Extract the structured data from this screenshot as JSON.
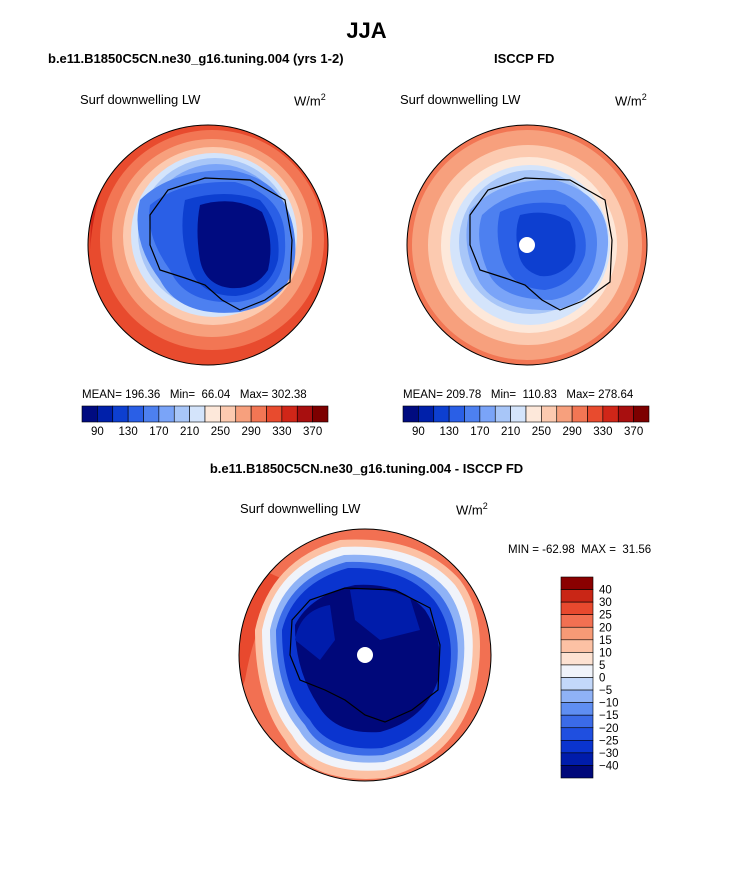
{
  "figure": {
    "season_title": "JJA",
    "left_case_title": "b.e11.B1850C5CN.ne30_g16.tuning.004 (yrs 1-2)",
    "right_case_title": "ISCCP FD",
    "diff_title": "b.e11.B1850C5CN.ne30_g16.tuning.004 - ISCCP FD"
  },
  "panels": {
    "model": {
      "variable": "Surf downwelling LW",
      "units_base": "W/m",
      "units_exp": "2",
      "stats": "MEAN= 196.36   Min=  66.04   Max= 302.38"
    },
    "obs": {
      "variable": "Surf downwelling LW",
      "units_base": "W/m",
      "units_exp": "2",
      "stats": "MEAN= 209.78   Min=  110.83   Max= 278.64"
    },
    "diff": {
      "variable": "Surf downwelling LW",
      "units_base": "W/m",
      "units_exp": "2",
      "stats": "MIN = -62.98  MAX =  31.56"
    }
  },
  "colors": {
    "abs_scale": [
      "#000b80",
      "#0020aa",
      "#0d3fd0",
      "#2a5fe6",
      "#4d80f0",
      "#7aa4f8",
      "#a8c6f8",
      "#d4e4fb",
      "#fde8da",
      "#fccab0",
      "#f7a07d",
      "#f27654",
      "#e84b2e",
      "#d02618",
      "#a80f0f",
      "#7d0000"
    ],
    "diff_scale": [
      "#00087a",
      "#001cab",
      "#0a34cf",
      "#1f4fe0",
      "#3b6be8",
      "#5f8ef2",
      "#8fb2f6",
      "#c3d8fa",
      "#f0f3fa",
      "#fde2d2",
      "#fcc1a4",
      "#f79a76",
      "#f27052",
      "#e8492e",
      "#c92616",
      "#8a0000"
    ]
  },
  "chart_data": [
    {
      "type": "heatmap",
      "title": "Surf downwelling LW",
      "subtitle": "b.e11.B1850C5CN.ne30_g16.tuning.004 (yrs 1-2)",
      "projection": "south polar stereographic",
      "mean": 196.36,
      "min": 66.04,
      "max": 302.38,
      "units": "W/m^2",
      "levels": [
        90,
        110,
        130,
        150,
        170,
        190,
        210,
        230,
        250,
        270,
        290,
        310,
        330,
        350,
        370
      ],
      "colorbar_ticks": [
        "90",
        "130",
        "170",
        "210",
        "250",
        "290",
        "330",
        "370"
      ]
    },
    {
      "type": "heatmap",
      "title": "Surf downwelling LW",
      "subtitle": "ISCCP FD",
      "projection": "south polar stereographic",
      "mean": 209.78,
      "min": 110.83,
      "max": 278.64,
      "units": "W/m^2",
      "levels": [
        90,
        110,
        130,
        150,
        170,
        190,
        210,
        230,
        250,
        270,
        290,
        310,
        330,
        350,
        370
      ],
      "colorbar_ticks": [
        "90",
        "130",
        "170",
        "210",
        "250",
        "290",
        "330",
        "370"
      ]
    },
    {
      "type": "heatmap",
      "title": "Surf downwelling LW",
      "subtitle": "b.e11.B1850C5CN.ne30_g16.tuning.004 - ISCCP FD",
      "projection": "south polar stereographic",
      "min": -62.98,
      "max": 31.56,
      "units": "W/m^2",
      "levels": [
        -40,
        -30,
        -25,
        -20,
        -15,
        -10,
        -5,
        0,
        5,
        10,
        15,
        20,
        25,
        30,
        40
      ],
      "colorbar_ticks": [
        "40",
        "30",
        "25",
        "20",
        "15",
        "10",
        "5",
        "0",
        "−5",
        "−10",
        "−15",
        "−20",
        "−25",
        "−30",
        "−40"
      ]
    }
  ]
}
